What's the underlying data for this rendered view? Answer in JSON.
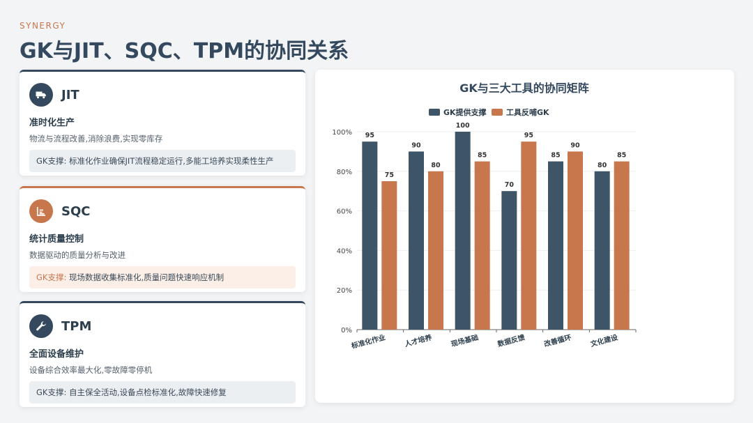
{
  "header": {
    "eyebrow": "SYNERGY",
    "title": "GK与JIT、SQC、TPM的协同关系"
  },
  "cards": [
    {
      "name": "JIT",
      "icon": "truck-icon",
      "subtitle": "准时化生产",
      "desc": "物流与流程改善,消除浪费,实现零库存",
      "support_lead": "GK支撑:",
      "support_text": " 标准化作业确保JIT流程稳定运行,多能工培养实现柔性生产"
    },
    {
      "name": "SQC",
      "icon": "chart-icon",
      "subtitle": "统计质量控制",
      "desc": "数据驱动的质量分析与改进",
      "support_lead": "GK支撑:",
      "support_text": " 现场数据收集标准化,质量问题快速响应机制"
    },
    {
      "name": "TPM",
      "icon": "wrench-icon",
      "subtitle": "全面设备维护",
      "desc": "设备综合效率最大化,零故障零停机",
      "support_lead": "GK支撑:",
      "support_text": " 自主保全活动,设备点检标准化,故障快速修复"
    }
  ],
  "colors": {
    "primary": "#34495e",
    "accent": "#c8764c"
  },
  "chart_data": {
    "type": "bar",
    "title": "GK与三大工具的协同矩阵",
    "categories": [
      "标准化作业",
      "人才培养",
      "现场基础",
      "数据反馈",
      "改善循环",
      "文化建设"
    ],
    "series": [
      {
        "name": "GK提供支撑",
        "values": [
          95,
          90,
          100,
          70,
          85,
          80
        ],
        "color": "#3d5566"
      },
      {
        "name": "工具反哺GK",
        "values": [
          75,
          80,
          85,
          95,
          90,
          85
        ],
        "color": "#c8764c"
      }
    ],
    "ylim": [
      0,
      100
    ],
    "yticks": [
      "0%",
      "20%",
      "40%",
      "60%",
      "80%",
      "100%"
    ],
    "legend": "top-center",
    "grid": true
  }
}
